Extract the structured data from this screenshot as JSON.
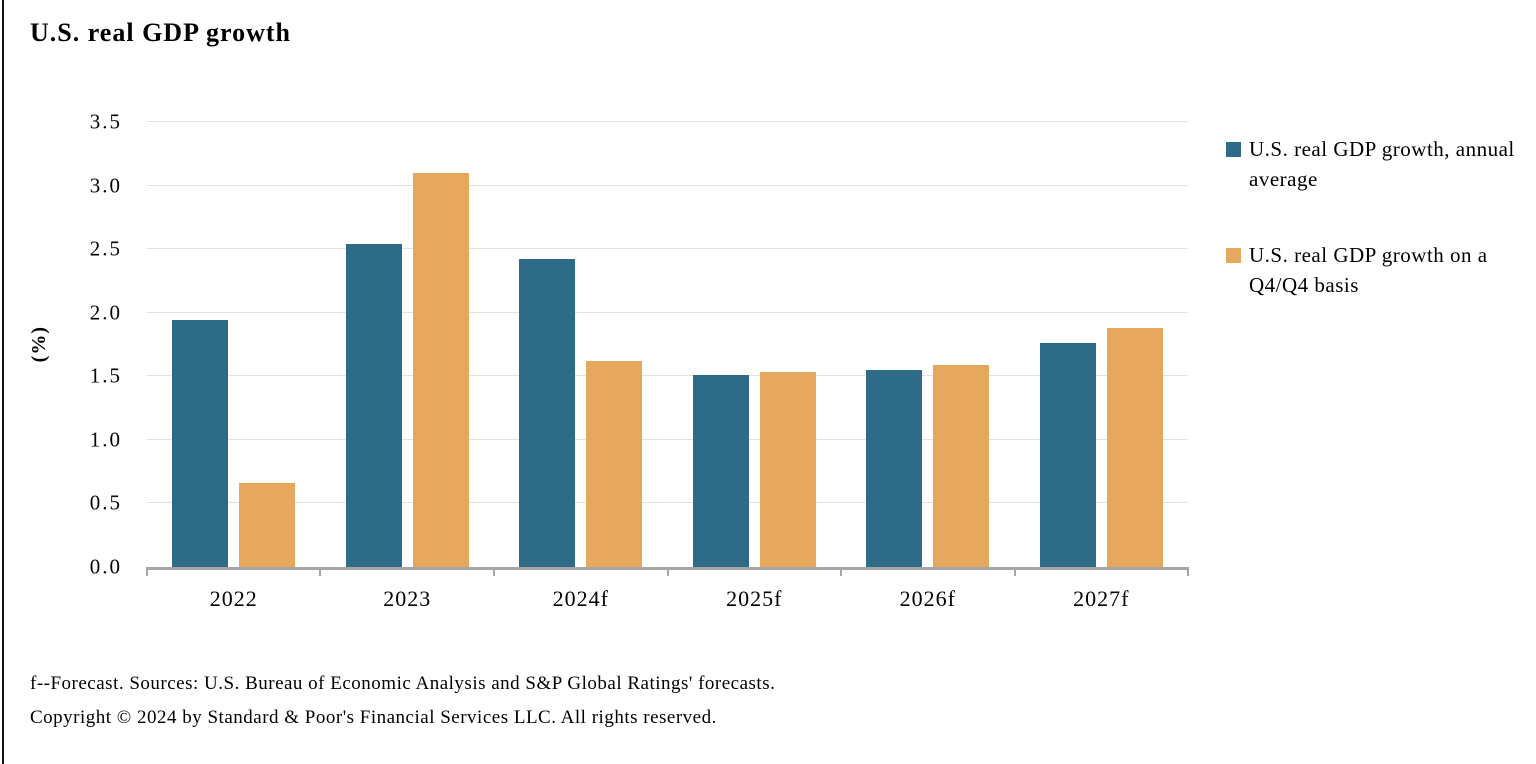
{
  "title": "U.S. real GDP growth",
  "chart_data": {
    "type": "bar",
    "categories": [
      "2022",
      "2023",
      "2024f",
      "2025f",
      "2026f",
      "2027f"
    ],
    "series": [
      {
        "name": "U.S. real GDP growth, annual average",
        "color": "#2d6b86",
        "values": [
          1.94,
          2.54,
          2.42,
          1.51,
          1.55,
          1.76
        ]
      },
      {
        "name": "U.S. real GDP growth on a Q4/Q4 basis",
        "color": "#e5a85d",
        "values": [
          0.66,
          3.1,
          1.62,
          1.53,
          1.59,
          1.88
        ]
      }
    ],
    "title": "U.S. real GDP growth",
    "xlabel": "",
    "ylabel": "(%)",
    "ylim": [
      0,
      3.5
    ],
    "yticks": [
      "0.0",
      "0.5",
      "1.0",
      "1.5",
      "2.0",
      "2.5",
      "3.0",
      "3.5"
    ],
    "grid": true,
    "legend_position": "right"
  },
  "legend": {
    "items": [
      {
        "label": "U.S. real GDP growth, annual average",
        "color": "#2d6b86"
      },
      {
        "label": "U.S. real GDP growth on a Q4/Q4 basis",
        "color": "#e5a85d"
      }
    ]
  },
  "footnotes": {
    "line1": "f--Forecast. Sources: U.S. Bureau of Economic Analysis and S&P Global Ratings' forecasts.",
    "line2": "Copyright © 2024 by Standard & Poor's Financial Services LLC. All rights reserved."
  },
  "colors": {
    "bar_blue": "#2d6b86",
    "bar_orange": "#e5a85d",
    "gridline": "#e2e2e2",
    "axis": "#a6a6a6",
    "text": "#000000",
    "left_border": "#111111"
  }
}
